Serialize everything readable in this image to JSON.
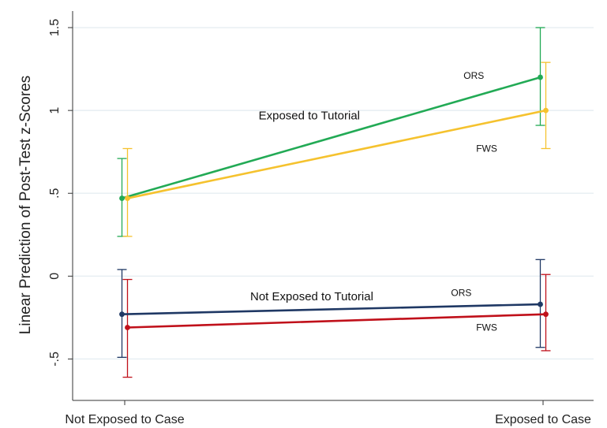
{
  "chart_data": {
    "type": "line",
    "title": "",
    "xlabel": "",
    "ylabel": "Linear Prediction of Post-Test z-Scores",
    "categories": [
      "Not Exposed to Case",
      "Exposed to Case"
    ],
    "ylim": [
      -0.75,
      1.6
    ],
    "yticks": [
      {
        "value": 1.5,
        "label": "1.5"
      },
      {
        "value": 1,
        "label": "1"
      },
      {
        "value": 0.5,
        "label": ".5"
      },
      {
        "value": 0,
        "label": "0"
      },
      {
        "value": -0.5,
        "label": "-.5"
      }
    ],
    "grid": true,
    "series": [
      {
        "key": "ors-tutorial",
        "color": "#22aa55",
        "values": [
          0.47,
          1.2
        ],
        "ci_low": [
          0.24,
          0.91
        ],
        "ci_high": [
          0.71,
          1.5
        ],
        "offset": -1
      },
      {
        "key": "fws-tutorial",
        "color": "#f5c22e",
        "values": [
          0.47,
          1.0
        ],
        "ci_low": [
          0.24,
          0.77
        ],
        "ci_high": [
          0.77,
          1.29
        ],
        "offset": 1
      },
      {
        "key": "ors-no-tutorial",
        "color": "#1f3864",
        "values": [
          -0.23,
          -0.17
        ],
        "ci_low": [
          -0.49,
          -0.43
        ],
        "ci_high": [
          0.04,
          0.1
        ],
        "offset": -1
      },
      {
        "key": "fws-no-tutorial",
        "color": "#c0101a",
        "values": [
          -0.31,
          -0.23
        ],
        "ci_low": [
          -0.61,
          -0.45
        ],
        "ci_high": [
          -0.02,
          0.01
        ],
        "offset": 1
      }
    ],
    "annotations": [
      {
        "key": "exposed-tutorial",
        "text": "Exposed to Tutorial",
        "x": 0.32,
        "y": 0.97,
        "size": 15
      },
      {
        "key": "ors-top",
        "text": "ORS",
        "x": 0.81,
        "y": 1.21,
        "size": 12
      },
      {
        "key": "fws-top",
        "text": "FWS",
        "x": 0.84,
        "y": 0.77,
        "size": 12
      },
      {
        "key": "not-exposed-tutorial",
        "text": "Not Exposed to Tutorial",
        "x": 0.3,
        "y": -0.12,
        "size": 15
      },
      {
        "key": "ors-bottom",
        "text": "ORS",
        "x": 0.78,
        "y": -0.1,
        "size": 12
      },
      {
        "key": "fws-bottom",
        "text": "FWS",
        "x": 0.84,
        "y": -0.31,
        "size": 12
      }
    ]
  }
}
